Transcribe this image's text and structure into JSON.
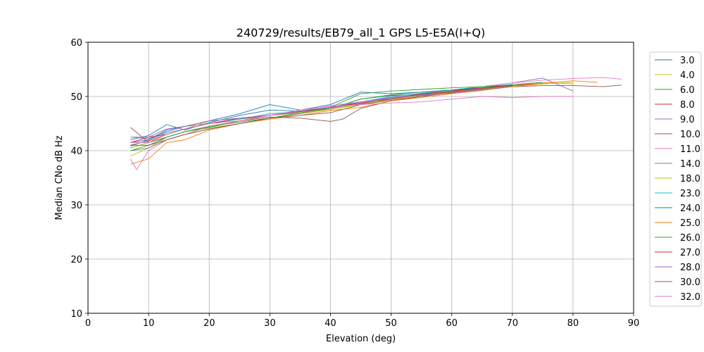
{
  "chart_data": {
    "type": "line",
    "title": "240729/results/EB79_all_1 GPS L5-E5A(I+Q)",
    "xlabel": "Elevation (deg)",
    "ylabel": "Median CNo dB Hz",
    "xlim": [
      0,
      90
    ],
    "ylim": [
      10,
      60
    ],
    "xticks": [
      "0",
      "10",
      "20",
      "30",
      "40",
      "50",
      "60",
      "70",
      "80",
      "90"
    ],
    "yticks": [
      "10",
      "20",
      "30",
      "40",
      "50",
      "60"
    ],
    "grid": true,
    "legend_position": "right",
    "series": [
      {
        "name": "3.0",
        "color": "#1f77b4",
        "x": [
          7,
          10,
          13,
          16,
          20,
          25,
          30,
          35,
          40,
          45,
          50,
          55,
          60,
          65,
          70
        ],
        "y": [
          42.0,
          42.8,
          44.8,
          43.8,
          45.2,
          46.5,
          47.5,
          47.3,
          47.8,
          49.5,
          50.2,
          50.4,
          51.0,
          51.5,
          52.0
        ]
      },
      {
        "name": "4.0",
        "color": "#bcbd22",
        "x": [
          7,
          10,
          13,
          16,
          20,
          25,
          30,
          35,
          40,
          45,
          50,
          55,
          60,
          65,
          70,
          75,
          80
        ],
        "y": [
          39.0,
          40.5,
          42.5,
          43.5,
          44.2,
          45.0,
          46.0,
          46.8,
          47.6,
          48.7,
          49.6,
          50.2,
          50.9,
          51.6,
          52.0,
          52.6,
          52.3
        ]
      },
      {
        "name": "6.0",
        "color": "#2ca02c",
        "x": [
          7,
          10,
          13,
          16,
          20,
          25,
          30,
          35,
          40,
          45,
          50,
          55,
          60,
          65,
          70,
          75
        ],
        "y": [
          40.5,
          41.5,
          42.5,
          43.5,
          44.3,
          45.5,
          46.5,
          47.0,
          47.8,
          49.5,
          50.3,
          50.8,
          51.2,
          51.8,
          52.2,
          52.6
        ]
      },
      {
        "name": "8.0",
        "color": "#d62728",
        "x": [
          7,
          10,
          13,
          16,
          20,
          25,
          30,
          35,
          40,
          45,
          50,
          55,
          60,
          65,
          70,
          75
        ],
        "y": [
          41.0,
          41.8,
          43.0,
          44.0,
          45.0,
          45.8,
          46.5,
          47.3,
          48.0,
          48.8,
          49.6,
          50.3,
          50.9,
          51.5,
          52.0,
          52.4
        ]
      },
      {
        "name": "9.0",
        "color": "#9467bd",
        "x": [
          7,
          10,
          13,
          16,
          20,
          25,
          30,
          35,
          40,
          45,
          50,
          55,
          60,
          65,
          70,
          75,
          80
        ],
        "y": [
          42.5,
          42.2,
          43.5,
          44.5,
          45.0,
          45.8,
          46.8,
          47.2,
          48.0,
          48.6,
          49.8,
          50.3,
          51.0,
          51.8,
          52.5,
          53.4,
          51.0
        ]
      },
      {
        "name": "10.0",
        "color": "#8c564b",
        "x": [
          7,
          10,
          13,
          16,
          20,
          25,
          30,
          35,
          40,
          42,
          45,
          50,
          55,
          60,
          65,
          70,
          75,
          80,
          85,
          88
        ],
        "y": [
          44.3,
          41.5,
          42.5,
          43.5,
          44.5,
          45.5,
          46.2,
          46.0,
          45.4,
          45.8,
          47.8,
          49.2,
          50.0,
          50.8,
          51.3,
          51.8,
          52.0,
          52.0,
          51.8,
          52.1
        ]
      },
      {
        "name": "11.0",
        "color": "#e377c2",
        "x": [
          7,
          8,
          10,
          13,
          16,
          20,
          25,
          30,
          35,
          40,
          45,
          50,
          55,
          60,
          65,
          70,
          75,
          80,
          85,
          88
        ],
        "y": [
          38.5,
          36.5,
          40.0,
          42.0,
          43.0,
          44.5,
          45.5,
          46.5,
          47.3,
          48.3,
          49.0,
          49.8,
          50.5,
          51.0,
          51.8,
          52.5,
          53.0,
          53.3,
          53.5,
          53.2
        ]
      },
      {
        "name": "14.0",
        "color": "#7f7f7f",
        "x": [
          7,
          10,
          13,
          16,
          20,
          25,
          30,
          35,
          40,
          45,
          50,
          55,
          60,
          65,
          70
        ],
        "y": [
          40.0,
          40.5,
          42.0,
          43.0,
          44.0,
          45.0,
          46.0,
          46.8,
          47.8,
          48.8,
          49.6,
          50.4,
          51.0,
          51.5,
          52.0
        ]
      },
      {
        "name": "18.0",
        "color": "#bcbd22",
        "x": [
          7,
          10,
          13,
          16,
          20,
          25,
          30,
          35,
          40,
          45,
          50,
          55,
          60,
          65,
          70,
          75,
          80
        ],
        "y": [
          40.5,
          41.5,
          43.0,
          44.0,
          45.5,
          46.0,
          46.5,
          47.0,
          47.6,
          48.5,
          49.5,
          50.0,
          50.8,
          51.3,
          51.9,
          52.3,
          52.6
        ]
      },
      {
        "name": "23.0",
        "color": "#17becf",
        "x": [
          7,
          10,
          13,
          16,
          20,
          25,
          30,
          35,
          40,
          45,
          50,
          55,
          60,
          65,
          70
        ],
        "y": [
          40.8,
          42.0,
          43.3,
          44.0,
          45.0,
          45.8,
          46.8,
          47.2,
          48.0,
          49.0,
          50.0,
          50.6,
          51.2,
          51.8,
          52.2
        ]
      },
      {
        "name": "24.0",
        "color": "#1f77b4",
        "x": [
          7,
          10,
          13,
          16,
          20,
          25,
          30,
          35,
          40,
          45,
          50,
          55,
          60,
          65,
          70
        ],
        "y": [
          41.5,
          42.0,
          43.8,
          44.5,
          45.5,
          46.8,
          48.5,
          47.5,
          48.5,
          50.8,
          50.5,
          50.8,
          51.2,
          51.6,
          52.0
        ]
      },
      {
        "name": "25.0",
        "color": "#ff7f0e",
        "x": [
          7,
          10,
          13,
          16,
          20,
          25,
          30,
          35,
          40,
          45,
          50,
          55,
          60,
          65,
          70,
          75,
          80,
          84
        ],
        "y": [
          37.5,
          38.5,
          41.5,
          42.0,
          43.8,
          45.0,
          45.8,
          46.5,
          47.4,
          48.0,
          49.2,
          49.8,
          50.5,
          51.1,
          51.8,
          52.4,
          52.9,
          52.6
        ]
      },
      {
        "name": "26.0",
        "color": "#2ca02c",
        "x": [
          7,
          10,
          13,
          16,
          20,
          25,
          30,
          35,
          40,
          45,
          50,
          55,
          60,
          65,
          70
        ],
        "y": [
          40.0,
          41.0,
          42.5,
          43.5,
          44.5,
          45.3,
          46.0,
          47.0,
          48.0,
          50.5,
          51.0,
          51.3,
          51.6,
          51.8,
          52.0
        ]
      },
      {
        "name": "27.0",
        "color": "#d62728",
        "x": [
          7,
          10,
          13,
          16,
          20,
          25,
          30,
          35,
          40,
          45,
          50,
          55,
          60,
          65,
          70
        ],
        "y": [
          41.5,
          42.5,
          43.0,
          44.0,
          45.0,
          46.0,
          46.5,
          47.2,
          48.0,
          48.8,
          49.5,
          50.5,
          51.0,
          51.6,
          52.1
        ]
      },
      {
        "name": "28.0",
        "color": "#9467bd",
        "x": [
          7,
          10,
          13,
          16,
          20,
          25,
          30,
          35,
          40,
          45,
          50,
          55,
          60,
          65,
          70
        ],
        "y": [
          42.5,
          42.5,
          44.0,
          44.5,
          45.5,
          46.0,
          46.5,
          47.3,
          48.0,
          49.0,
          49.8,
          50.2,
          50.6,
          51.2,
          51.8
        ]
      },
      {
        "name": "30.0",
        "color": "#8c564b",
        "x": [
          7,
          10,
          13,
          16,
          20,
          25,
          30,
          35,
          40,
          45,
          50,
          55,
          60,
          65,
          70
        ],
        "y": [
          41.0,
          41.0,
          42.0,
          43.0,
          44.0,
          45.0,
          46.0,
          46.5,
          47.0,
          48.5,
          49.3,
          50.0,
          50.7,
          51.4,
          52.0
        ]
      },
      {
        "name": "32.0",
        "color": "#e377c2",
        "x": [
          7,
          10,
          13,
          16,
          20,
          25,
          30,
          35,
          40,
          45,
          50,
          55,
          60,
          65,
          70,
          75,
          80
        ],
        "y": [
          41.5,
          41.5,
          43.0,
          44.0,
          45.0,
          45.5,
          46.5,
          47.5,
          48.2,
          48.5,
          48.8,
          49.0,
          49.5,
          50.0,
          49.8,
          50.0,
          50.0
        ]
      }
    ]
  }
}
